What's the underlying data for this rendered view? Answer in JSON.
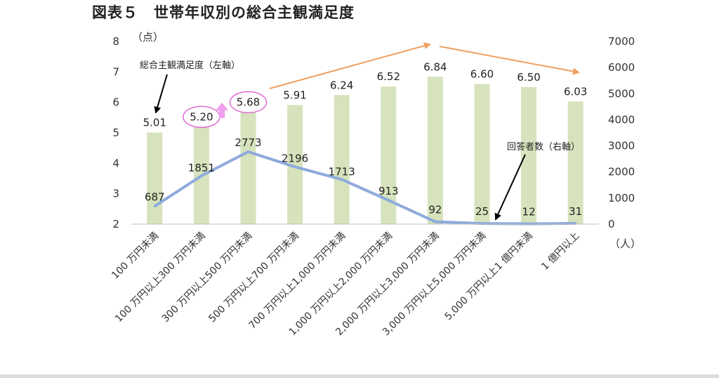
{
  "title": "図表５　世帯年収別の総合主観満足度",
  "chart_data": {
    "type": "bar",
    "categories": [
      "100 万円未満",
      "100 万円以上300 万円未満",
      "300 万円以上500 万円未満",
      "500 万円以上700 万円未満",
      "700 万円以上1,000 万円未満",
      "1,000 万円以上2,000 万円未満",
      "2,000 万円以上3,000 万円未満",
      "3,000 万円以上5,000 万円未満",
      "5,000 万円以上1 億円未満",
      "1 億円以上"
    ],
    "series": [
      {
        "name": "総合主観満足度（左軸）",
        "type": "bar",
        "axis": "left",
        "color": "#d6e3bc",
        "values": [
          5.01,
          5.2,
          5.68,
          5.91,
          6.24,
          6.52,
          6.84,
          6.6,
          6.5,
          6.03
        ],
        "labels": [
          "5.01",
          "5.20",
          "5.68",
          "5.91",
          "6.24",
          "6.52",
          "6.84",
          "6.60",
          "6.50",
          "6.03"
        ]
      },
      {
        "name": "回答者数（右軸）",
        "type": "line",
        "axis": "right",
        "color": "#8eaadc",
        "values": [
          687,
          1851,
          2773,
          2196,
          1713,
          913,
          92,
          25,
          12,
          31
        ],
        "labels": [
          "687",
          "1851",
          "2773",
          "2196",
          "1713",
          "913",
          "92",
          "25",
          "12",
          "31"
        ]
      }
    ],
    "y_left": {
      "min": 2,
      "max": 8,
      "ticks": [
        "2",
        "3",
        "4",
        "5",
        "6",
        "7",
        "8"
      ],
      "unit": "（点）"
    },
    "y_right": {
      "min": 0,
      "max": 7000,
      "ticks": [
        "0",
        "1000",
        "2000",
        "3000",
        "4000",
        "5000",
        "6000",
        "7000"
      ],
      "unit": "（人）"
    },
    "annotations": {
      "left_series": "総合主観満足度（左軸）",
      "right_series": "回答者数（右軸）"
    },
    "highlight_colors": {
      "circle": "#e06bd6",
      "up_arrow": "#f0a0ee",
      "trend_arrow": "#f0a060",
      "annotation_arrow": "#000000"
    },
    "grid": false
  }
}
